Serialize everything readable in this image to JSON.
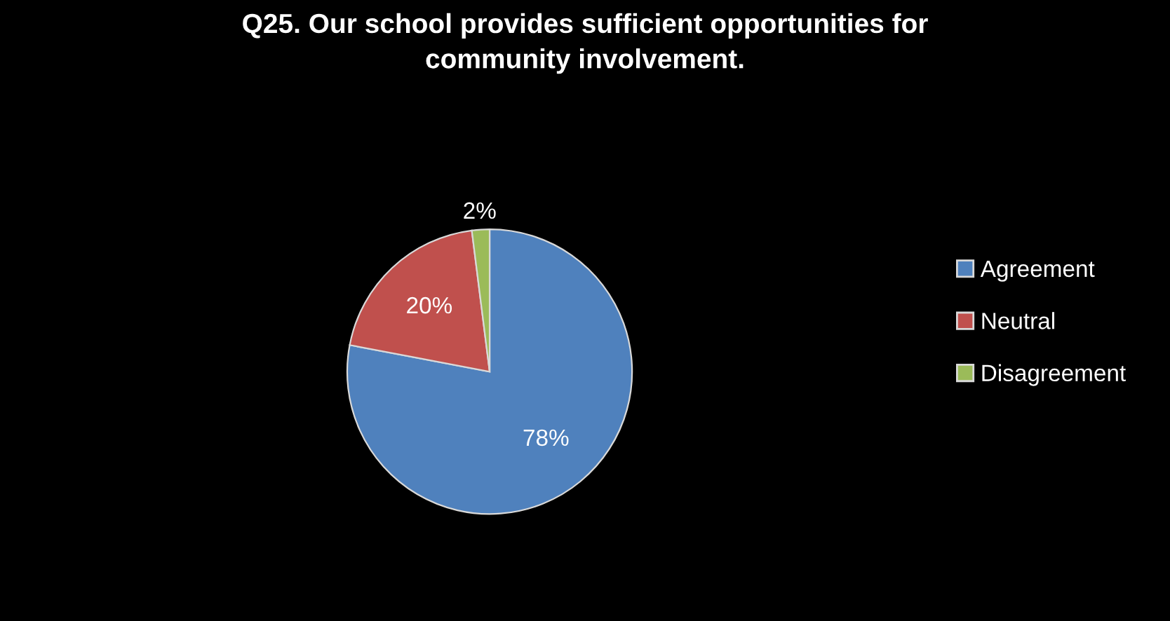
{
  "chart_data": {
    "type": "pie",
    "title": "Q25. Our school provides sufficient opportunities for\ncommunity involvement.",
    "categories": [
      "Agreement",
      "Neutral",
      "Disagreement"
    ],
    "values": [
      78,
      20,
      2
    ],
    "colors": [
      "#4f81bd",
      "#c0504d",
      "#9bbb59"
    ],
    "value_labels": [
      "78%",
      "20%",
      "2%"
    ],
    "legend": "right"
  }
}
